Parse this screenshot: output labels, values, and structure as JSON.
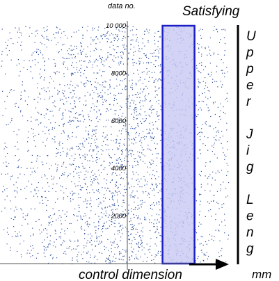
{
  "chart_data": {
    "type": "scatter",
    "title": "Satisfying",
    "xlabel": "control dimension",
    "ylabel": "data no.",
    "x_unit": "mm",
    "right_label": [
      "U",
      "p",
      "p",
      "e",
      "r",
      "",
      "J",
      "i",
      "g",
      "",
      "L",
      "e",
      "n",
      "g"
    ],
    "ylim": [
      0,
      10000
    ],
    "yticks": [
      2000,
      4000,
      6000,
      8000,
      10000
    ],
    "ytick_labels": [
      "2000",
      "4000",
      "6000",
      "8000",
      "10 000"
    ],
    "grid": false,
    "highlight_band": {
      "x_start": 55,
      "x_end": 105,
      "y_top": 10000
    },
    "x_range_note": "x: -185 … 200 in the chart's horizontal units (mm), centered at 0",
    "points": {
      "count": 3600,
      "x_mean": 0,
      "x_sd": 120,
      "seed": 7
    },
    "colors": {
      "points": "#2e4f9e",
      "band_fill": "#c8c8f4",
      "band_stroke": "#1e1ec8",
      "axis": "#000000"
    }
  }
}
